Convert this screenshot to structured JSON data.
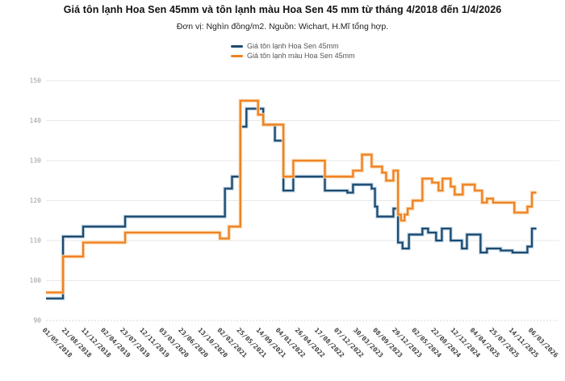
{
  "header": {
    "title": "Giá tôn lạnh Hoa Sen 45mm và tôn lạnh màu Hoa Sen 45 mm từ tháng 4/2018 đến 1/4/2026",
    "subtitle": "Đơn vị: Nghìn đồng/m2. Nguồn: Wichart, H.Mĩ tổng hợp."
  },
  "legend": [
    {
      "label": "Giá tôn lạnh Hoa Sen 45mm",
      "color": "#1b4a70"
    },
    {
      "label": "Giá tôn lạnh màu Hoa Sen 45mm",
      "color": "#ef8222"
    }
  ],
  "chart_data": {
    "type": "line",
    "step": true,
    "title": "Giá tôn lạnh Hoa Sen 45mm và tôn lạnh màu Hoa Sen 45 mm từ tháng 4/2018 đến 1/4/2026",
    "unit": "Nghìn đồng/m2",
    "source": "Wichart, H.Mĩ tổng hợp",
    "grid": true,
    "legend_position": "top-center",
    "ylim": [
      90,
      150
    ],
    "yticks": [
      90,
      100,
      110,
      120,
      130,
      140,
      150
    ],
    "xtick_labels": [
      "01/05/2018",
      "21/08/2018",
      "11/12/2018",
      "02/04/2019",
      "23/07/2019",
      "12/11/2019",
      "03/03/2020",
      "23/06/2020",
      "13/10/2020",
      "02/02/2021",
      "25/05/2021",
      "14/09/2021",
      "04/01/2022",
      "26/04/2022",
      "17/08/2022",
      "07/12/2022",
      "30/03/2023",
      "08/09/2023",
      "29/12/2023",
      "02/05/2024",
      "22/08/2024",
      "12/12/2024",
      "04/04/2025",
      "25/07/2025",
      "14/11/2025",
      "06/03/2026"
    ],
    "x_end": "01/04/2026",
    "series": [
      {
        "name": "Giá tôn lạnh Hoa Sen 45mm",
        "color": "#1b4a70",
        "halo": "#bed3e4",
        "points": [
          [
            "01/05/2018",
            95.5
          ],
          [
            "07/08/2018",
            111
          ],
          [
            "01/12/2018",
            113.5
          ],
          [
            "31/07/2019",
            116
          ],
          [
            "25/02/2021",
            123
          ],
          [
            "07/04/2021",
            126
          ],
          [
            "25/05/2021",
            138.5
          ],
          [
            "29/06/2021",
            143
          ],
          [
            "04/10/2021",
            139
          ],
          [
            "10/12/2021",
            135
          ],
          [
            "28/01/2022",
            122.5
          ],
          [
            "26/03/2022",
            126
          ],
          [
            "25/09/2022",
            122.5
          ],
          [
            "02/02/2023",
            122
          ],
          [
            "07/03/2023",
            124
          ],
          [
            "30/07/2023",
            123
          ],
          [
            "27/08/2023",
            118.5
          ],
          [
            "13/09/2023",
            116
          ],
          [
            "15/12/2023",
            118
          ],
          [
            "12/01/2024",
            109.5
          ],
          [
            "10/02/2024",
            108
          ],
          [
            "22/03/2024",
            111.5
          ],
          [
            "12/06/2024",
            113
          ],
          [
            "15/07/2024",
            112
          ],
          [
            "30/08/2024",
            110
          ],
          [
            "02/10/2024",
            113
          ],
          [
            "22/11/2024",
            110
          ],
          [
            "26/01/2025",
            108
          ],
          [
            "24/02/2025",
            111.5
          ],
          [
            "14/05/2025",
            107
          ],
          [
            "20/06/2025",
            108
          ],
          [
            "07/09/2025",
            107.5
          ],
          [
            "14/11/2025",
            107
          ],
          [
            "08/02/2026",
            108.5
          ],
          [
            "06/03/2026",
            113
          ]
        ]
      },
      {
        "name": "Giá tôn lạnh màu Hoa Sen 45mm",
        "color": "#ef8222",
        "halo": "#fad7ae",
        "points": [
          [
            "01/05/2018",
            97
          ],
          [
            "07/08/2018",
            106
          ],
          [
            "01/12/2018",
            109.5
          ],
          [
            "31/07/2019",
            112
          ],
          [
            "27/01/2021",
            110.5
          ],
          [
            "20/03/2021",
            113.5
          ],
          [
            "25/05/2021",
            145
          ],
          [
            "04/09/2021",
            141.5
          ],
          [
            "04/10/2021",
            139
          ],
          [
            "28/01/2022",
            126
          ],
          [
            "26/03/2022",
            130
          ],
          [
            "25/09/2022",
            126
          ],
          [
            "07/03/2023",
            127.5
          ],
          [
            "11/05/2023",
            131.5
          ],
          [
            "30/07/2023",
            128.5
          ],
          [
            "11/10/2023",
            127
          ],
          [
            "03/11/2023",
            125
          ],
          [
            "15/12/2023",
            127.5
          ],
          [
            "12/01/2024",
            116.5
          ],
          [
            "31/01/2024",
            115
          ],
          [
            "23/02/2024",
            116.5
          ],
          [
            "14/03/2024",
            118
          ],
          [
            "15/04/2024",
            120
          ],
          [
            "12/06/2024",
            125.5
          ],
          [
            "07/08/2024",
            124.5
          ],
          [
            "13/09/2024",
            122.5
          ],
          [
            "06/10/2024",
            125.5
          ],
          [
            "22/11/2024",
            123.5
          ],
          [
            "15/12/2024",
            121.5
          ],
          [
            "31/01/2025",
            124
          ],
          [
            "11/04/2025",
            122.5
          ],
          [
            "23/05/2025",
            119.5
          ],
          [
            "20/06/2025",
            120.5
          ],
          [
            "25/07/2025",
            119.5
          ],
          [
            "25/11/2025",
            117
          ],
          [
            "08/02/2026",
            118.5
          ],
          [
            "06/03/2026",
            122
          ]
        ]
      }
    ]
  }
}
